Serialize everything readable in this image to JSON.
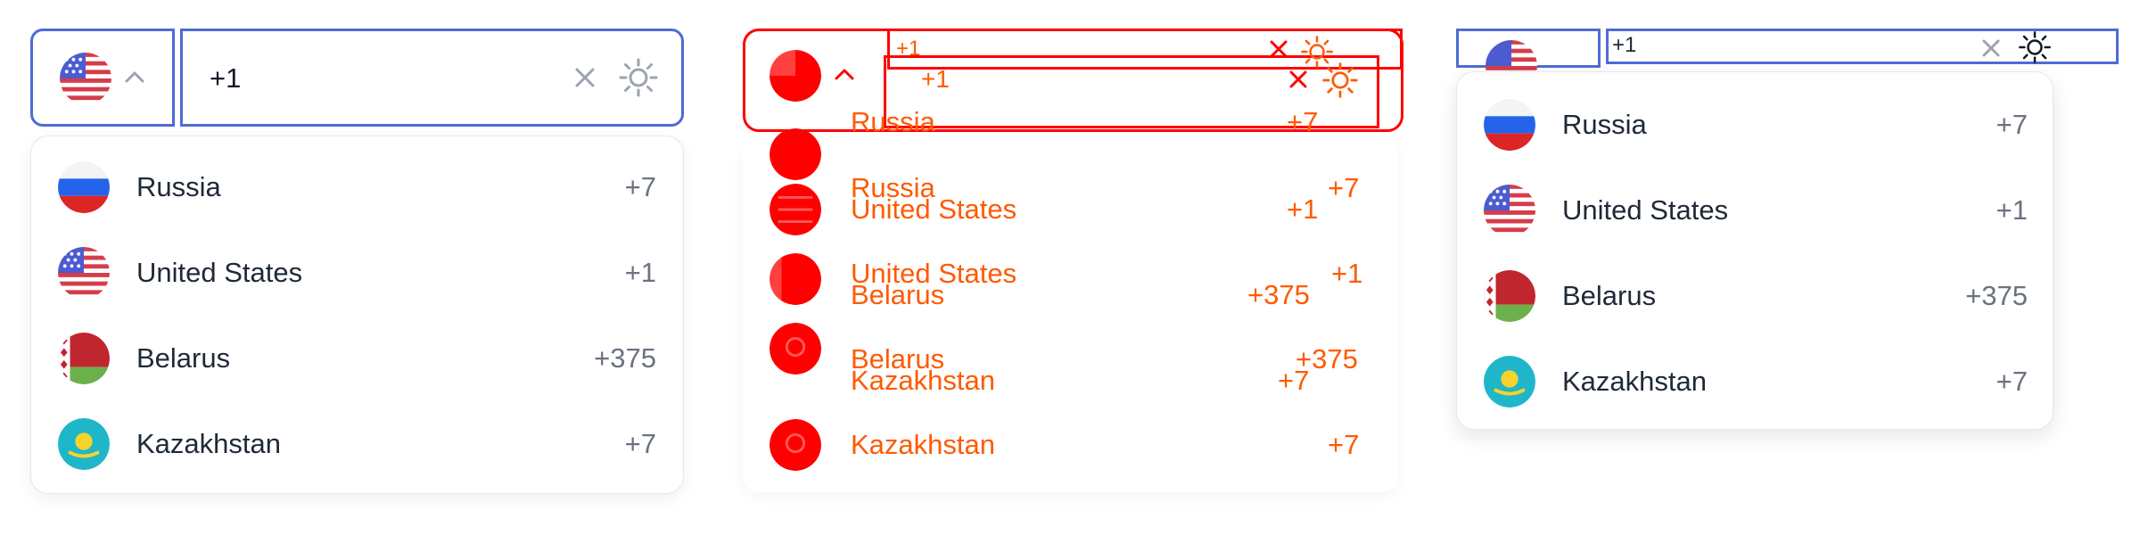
{
  "panel1": {
    "input": {
      "value": "+1"
    },
    "selected_country": "United States",
    "options": [
      {
        "name": "Russia",
        "code": "+7",
        "flag": "ru-flag"
      },
      {
        "name": "United States",
        "code": "+1",
        "flag": "us-flag"
      },
      {
        "name": "Belarus",
        "code": "+375",
        "flag": "by-flag"
      },
      {
        "name": "Kazakhstan",
        "code": "+7",
        "flag": "kz-flag"
      }
    ]
  },
  "panel2": {
    "input_values": [
      "+1",
      "+1"
    ],
    "options": [
      {
        "name": "Russia",
        "code": "+7"
      },
      {
        "name": "United States",
        "code": "+1"
      },
      {
        "name": "Belarus",
        "code": "+375"
      },
      {
        "name": "Kazakhstan",
        "code": "+7"
      }
    ]
  },
  "panel3": {
    "input": {
      "value": "+1"
    },
    "options": [
      {
        "name": "Russia",
        "code": "+7",
        "flag": "ru-flag"
      },
      {
        "name": "United States",
        "code": "+1",
        "flag": "us-flag"
      },
      {
        "name": "Belarus",
        "code": "+375",
        "flag": "by-flag"
      },
      {
        "name": "Kazakhstan",
        "code": "+7",
        "flag": "kz-flag"
      }
    ]
  },
  "colors": {
    "accent": "#4f6bd6",
    "debug_red": "#ff0000",
    "debug_orange": "#ff5a00",
    "text": "#1f2937",
    "muted": "#6b7280"
  }
}
